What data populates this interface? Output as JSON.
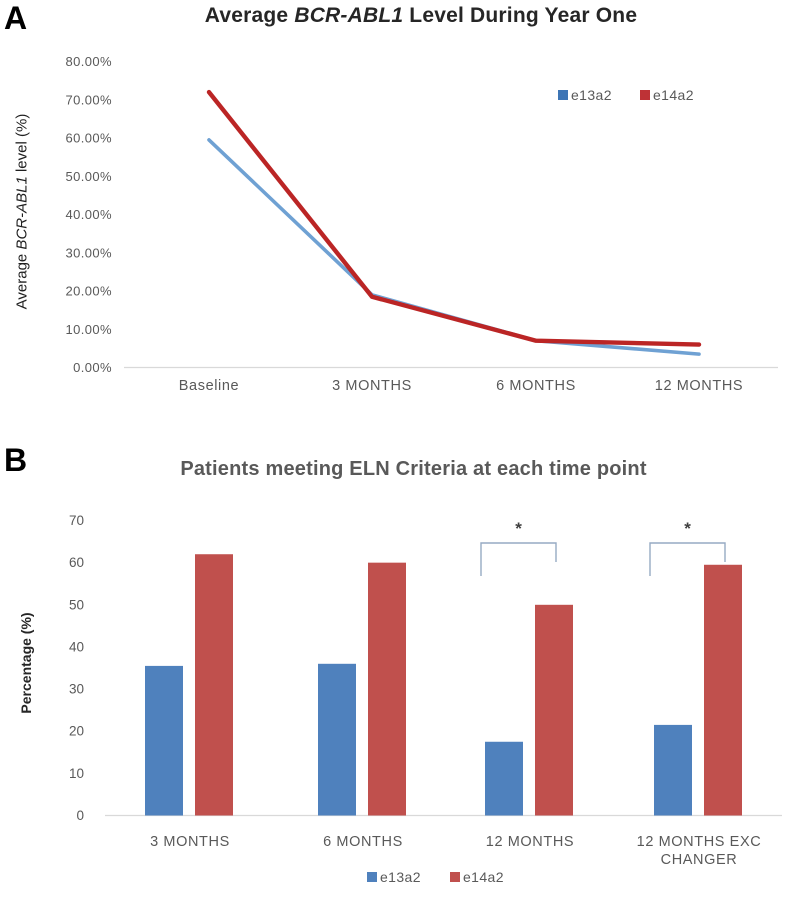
{
  "panel_a": {
    "label": "A",
    "title_prefix": "Average ",
    "title_italic": "BCR-ABL1",
    "title_suffix": " Level During Year One",
    "y_axis_title_prefix": "Average ",
    "y_axis_title_italic": "BCR-ABL1",
    "y_axis_title_suffix": " level (%)"
  },
  "panel_b": {
    "label": "B",
    "title": "Patients meeting ELN Criteria at each time point",
    "y_axis_title": "Percentage (%)"
  },
  "chart_data": [
    {
      "type": "line",
      "panel": "A",
      "title": "Average BCR-ABL1 Level During Year One",
      "ylabel": "Average BCR-ABL1 level (%)",
      "xlabel": "",
      "categories": [
        "Baseline",
        "3 MONTHS",
        "6 MONTHS",
        "12 MONTHS"
      ],
      "series": [
        {
          "name": "e13a2",
          "color": "#6fa1d3",
          "swatch": "#3e75b5",
          "values": [
            59.5,
            19,
            7,
            3.5
          ]
        },
        {
          "name": "e14a2",
          "color": "#bb2525",
          "swatch": "#be3236",
          "values": [
            72,
            18.5,
            7,
            6
          ]
        }
      ],
      "ylim": [
        0,
        80
      ],
      "ytick_step": 10,
      "ytick_labels": [
        "0.00%",
        "10.00%",
        "20.00%",
        "30.00%",
        "40.00%",
        "50.00%",
        "60.00%",
        "70.00%",
        "80.00%"
      ],
      "legend_position": "top-right",
      "grid": false
    },
    {
      "type": "bar",
      "panel": "B",
      "title": "Patients meeting ELN Criteria at each time point",
      "ylabel": "Percentage (%)",
      "xlabel": "",
      "categories": [
        "3 MONTHS",
        "6 MONTHS",
        "12 MONTHS",
        "12 MONTHS EXC CHANGER"
      ],
      "series": [
        {
          "name": "e13a2",
          "color": "#4f81bd",
          "swatch": "#4f81bd",
          "values": [
            35.5,
            36,
            17.5,
            21.5
          ]
        },
        {
          "name": "e14a2",
          "color": "#c0504d",
          "swatch": "#c0504d",
          "values": [
            62,
            60,
            50,
            59.5
          ]
        }
      ],
      "ylim": [
        0,
        70
      ],
      "ytick_step": 10,
      "ytick_labels": [
        "0",
        "10",
        "20",
        "30",
        "40",
        "50",
        "60",
        "70"
      ],
      "legend_position": "bottom-center",
      "grid": false,
      "significance": [
        {
          "category_index": 2,
          "label": "*"
        },
        {
          "category_index": 3,
          "label": "*"
        }
      ]
    }
  ],
  "colors": {
    "axis_line": "#d9d9d9",
    "tick_text": "#595959",
    "category_text": "#595959",
    "legend_text": "#595959",
    "bracket": "#96aac3",
    "asterisk": "#404040"
  }
}
